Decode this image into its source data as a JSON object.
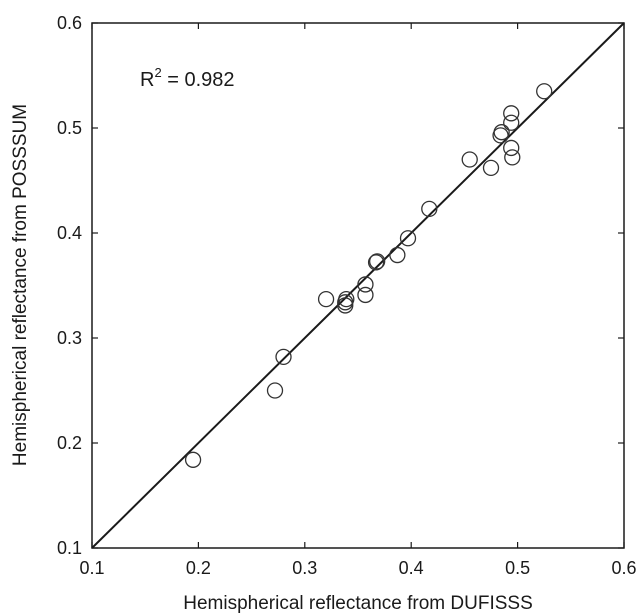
{
  "chart_data": {
    "type": "scatter",
    "xlabel": "Hemispherical reflectance from DUFISSS",
    "ylabel": "Hemispherical reflectance from POSSSUM",
    "xlim": [
      0.1,
      0.6
    ],
    "ylim": [
      0.1,
      0.6
    ],
    "x_ticks": [
      "0.1",
      "0.2",
      "0.3",
      "0.4",
      "0.5",
      "0.6"
    ],
    "y_ticks": [
      "0.1",
      "0.2",
      "0.3",
      "0.4",
      "0.5",
      "0.6"
    ],
    "grid": false,
    "legend": "none",
    "marker": "open-circle",
    "annotation": {
      "base": "R",
      "superscript": "2",
      "text": " = 0.982"
    },
    "reference_line": {
      "type": "1:1",
      "from": [
        0.1,
        0.1
      ],
      "to": [
        0.6,
        0.6
      ]
    },
    "points": [
      {
        "x": 0.195,
        "y": 0.184
      },
      {
        "x": 0.272,
        "y": 0.25
      },
      {
        "x": 0.28,
        "y": 0.282
      },
      {
        "x": 0.32,
        "y": 0.337
      },
      {
        "x": 0.338,
        "y": 0.331
      },
      {
        "x": 0.338,
        "y": 0.334
      },
      {
        "x": 0.339,
        "y": 0.337
      },
      {
        "x": 0.357,
        "y": 0.341
      },
      {
        "x": 0.357,
        "y": 0.351
      },
      {
        "x": 0.367,
        "y": 0.372
      },
      {
        "x": 0.368,
        "y": 0.373
      },
      {
        "x": 0.387,
        "y": 0.379
      },
      {
        "x": 0.397,
        "y": 0.395
      },
      {
        "x": 0.417,
        "y": 0.423
      },
      {
        "x": 0.455,
        "y": 0.47
      },
      {
        "x": 0.475,
        "y": 0.462
      },
      {
        "x": 0.484,
        "y": 0.493
      },
      {
        "x": 0.485,
        "y": 0.496
      },
      {
        "x": 0.494,
        "y": 0.481
      },
      {
        "x": 0.495,
        "y": 0.472
      },
      {
        "x": 0.494,
        "y": 0.505
      },
      {
        "x": 0.494,
        "y": 0.514
      },
      {
        "x": 0.525,
        "y": 0.535
      }
    ]
  },
  "colors": {
    "axis": "#1a1a1a",
    "marker_stroke": "#333333",
    "line": "#1a1a1a",
    "background": "#ffffff"
  }
}
